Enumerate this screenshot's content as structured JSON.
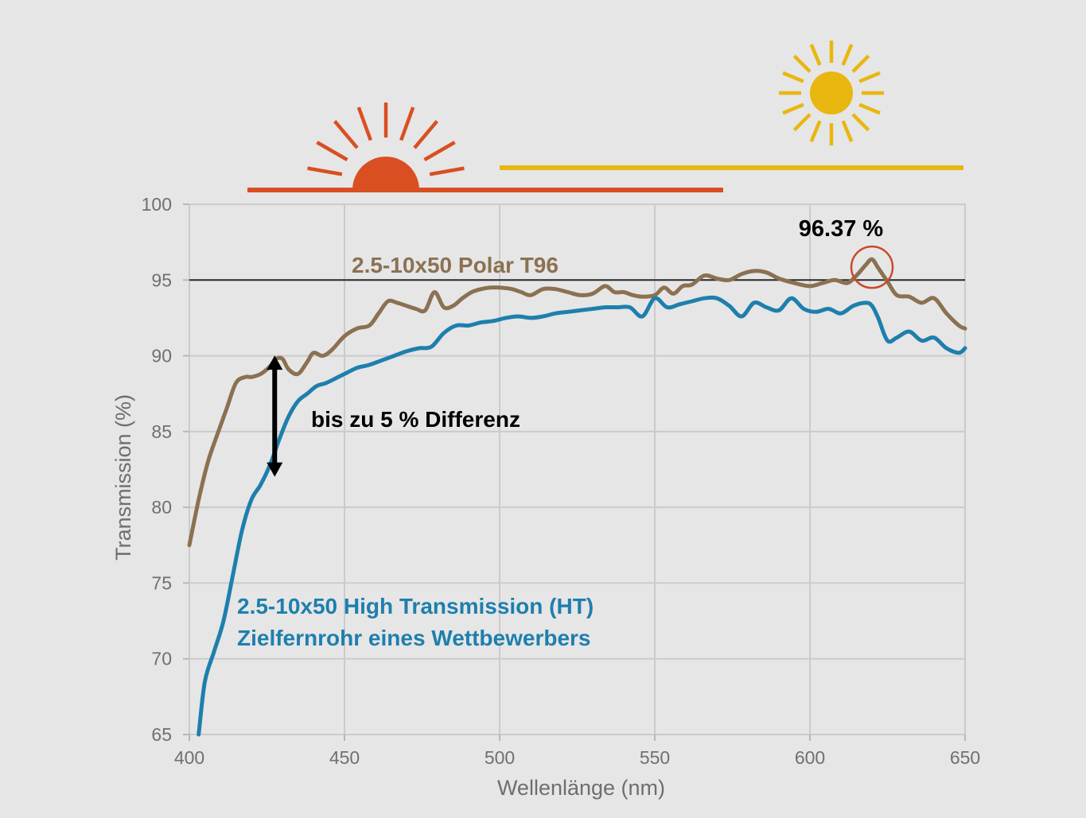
{
  "chart_data": {
    "type": "line",
    "title": "",
    "xlabel": "Wellenlänge (nm)",
    "ylabel": "Transmission (%)",
    "xlim": [
      400,
      650
    ],
    "ylim": [
      65,
      100
    ],
    "x_ticks": [
      400,
      450,
      500,
      550,
      600,
      650
    ],
    "y_ticks": [
      65,
      70,
      75,
      80,
      85,
      90,
      95,
      100
    ],
    "grid": true,
    "reference_line": {
      "y": 95
    },
    "series": [
      {
        "name": "2.5-10x50 Polar T96",
        "label": "2.5-10x50 Polar T96",
        "color": "#8b7152",
        "x": [
          400,
          403,
          406,
          409,
          412,
          415,
          418,
          420,
          423,
          426,
          428,
          430,
          432,
          435,
          438,
          440,
          443,
          446,
          450,
          454,
          458,
          461,
          464,
          467,
          470,
          473,
          476,
          479,
          482,
          485,
          488,
          491,
          494,
          497,
          500,
          504,
          507,
          510,
          514,
          518,
          522,
          526,
          530,
          534,
          537,
          540,
          543,
          546,
          550,
          553,
          556,
          559,
          562,
          566,
          570,
          574,
          578,
          582,
          586,
          590,
          595,
          600,
          604,
          608,
          612,
          615,
          618,
          620,
          622,
          625,
          628,
          632,
          636,
          640,
          644,
          648,
          650
        ],
        "y": [
          77.5,
          80.5,
          83,
          84.8,
          86.5,
          88.2,
          88.6,
          88.6,
          88.8,
          89.3,
          89.8,
          89.8,
          89.1,
          88.8,
          89.6,
          90.2,
          90,
          90.4,
          91.3,
          91.8,
          92.0,
          92.8,
          93.6,
          93.5,
          93.3,
          93.1,
          93.0,
          94.2,
          93.2,
          93.3,
          93.8,
          94.2,
          94.4,
          94.5,
          94.5,
          94.4,
          94.2,
          94.0,
          94.4,
          94.4,
          94.2,
          94.0,
          94.1,
          94.6,
          94.2,
          94.2,
          94.0,
          93.9,
          94.0,
          94.5,
          94.1,
          94.6,
          94.7,
          95.3,
          95.1,
          95.0,
          95.4,
          95.6,
          95.5,
          95.1,
          94.8,
          94.6,
          94.8,
          95.0,
          94.8,
          95.3,
          96.0,
          96.37,
          95.8,
          94.9,
          94.0,
          93.9,
          93.5,
          93.8,
          92.8,
          92.0,
          91.8
        ]
      },
      {
        "name": "2.5-10x50 High Transmission (HT) Zielfernrohr eines Wettbewerbers",
        "label_lines": [
          "2.5-10x50 High Transmission (HT)",
          "Zielfernrohr eines Wettbewerbers"
        ],
        "color": "#1e7fad",
        "x": [
          403,
          405,
          408,
          411,
          414,
          417,
          420,
          423,
          426,
          429,
          432,
          435,
          438,
          441,
          444,
          447,
          450,
          454,
          458,
          462,
          466,
          470,
          474,
          478,
          482,
          486,
          490,
          494,
          498,
          502,
          506,
          510,
          514,
          518,
          522,
          526,
          530,
          534,
          538,
          542,
          546,
          550,
          554,
          558,
          562,
          566,
          570,
          574,
          578,
          582,
          586,
          590,
          594,
          598,
          602,
          606,
          610,
          614,
          618,
          620,
          622,
          625,
          628,
          632,
          636,
          640,
          644,
          648,
          650
        ],
        "y": [
          65.0,
          68.5,
          70.5,
          72.5,
          75.5,
          78.5,
          80.5,
          81.5,
          82.8,
          84.5,
          86.0,
          87.0,
          87.5,
          88.0,
          88.2,
          88.5,
          88.8,
          89.2,
          89.4,
          89.7,
          90.0,
          90.3,
          90.5,
          90.6,
          91.5,
          92.0,
          92.0,
          92.2,
          92.3,
          92.5,
          92.6,
          92.5,
          92.6,
          92.8,
          92.9,
          93.0,
          93.1,
          93.2,
          93.2,
          93.2,
          92.6,
          93.8,
          93.2,
          93.4,
          93.6,
          93.8,
          93.8,
          93.3,
          92.6,
          93.5,
          93.2,
          93.0,
          93.8,
          93.1,
          92.9,
          93.1,
          92.8,
          93.3,
          93.5,
          93.3,
          92.5,
          91.0,
          91.2,
          91.6,
          91.0,
          91.2,
          90.5,
          90.2,
          90.5
        ]
      }
    ],
    "annotations": {
      "peak_label": "96.37 %",
      "peak_x": 620,
      "peak_y": 96.37,
      "difference_label": "bis zu 5 % Differenz",
      "difference_x": 427.5,
      "difference_y_top": 89.5,
      "difference_y_bottom": 82.8
    },
    "icons": {
      "sunrise": {
        "name": "sunrise-icon",
        "color": "#d94f22",
        "x_range": [
          420,
          570
        ]
      },
      "sun": {
        "name": "sun-icon",
        "color": "#e8b710",
        "x_range": [
          500,
          650
        ]
      }
    }
  }
}
